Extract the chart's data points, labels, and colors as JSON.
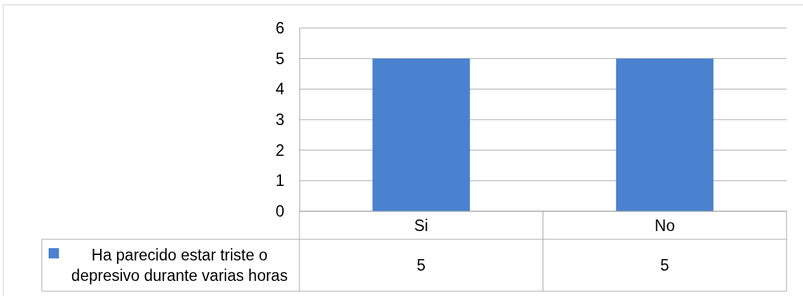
{
  "chart_data": {
    "type": "bar",
    "categories": [
      "Si",
      "No"
    ],
    "series": [
      {
        "name": "Ha parecido estar triste o depresivo durante varias horas",
        "color": "#4a82d0",
        "values": [
          5,
          5
        ]
      }
    ],
    "ylim": [
      0,
      6
    ],
    "yticks": [
      0,
      1,
      2,
      3,
      4,
      5,
      6
    ],
    "grid": "y",
    "legend": "bottom",
    "data_labels": true
  }
}
